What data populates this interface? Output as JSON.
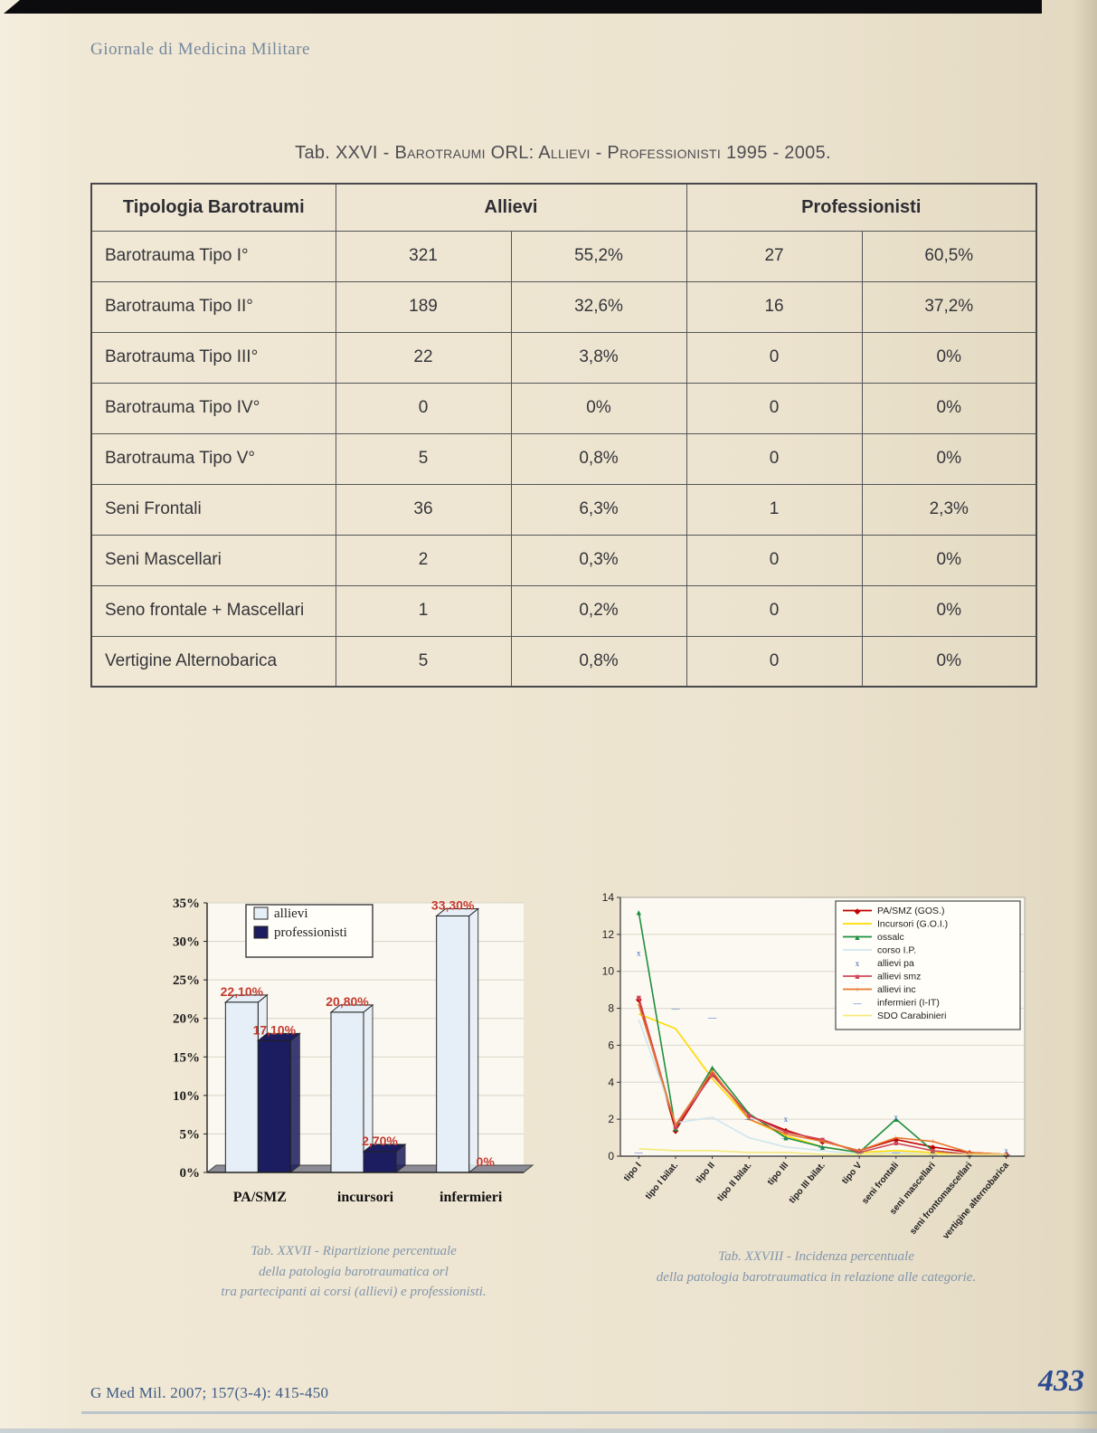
{
  "page": {
    "journal_header": "Giornale di Medicina Militare",
    "footer_citation": "G Med Mil. 2007; 157(3-4): 415-450",
    "page_number": "433"
  },
  "table": {
    "title_prefix": "Tab. XXVI - ",
    "title_smallcaps": "Barotraumi ORL: Allievi - Professionisti 1995 - 2005.",
    "headers": {
      "col1": "Tipologia Barotraumi",
      "group1": "Allievi",
      "group2": "Professionisti"
    },
    "rows": [
      [
        "Barotrauma Tipo I°",
        "321",
        "55,2%",
        "27",
        "60,5%"
      ],
      [
        "Barotrauma Tipo II°",
        "189",
        "32,6%",
        "16",
        "37,2%"
      ],
      [
        "Barotrauma Tipo III°",
        "22",
        "3,8%",
        "0",
        "0%"
      ],
      [
        "Barotrauma Tipo IV°",
        "0",
        "0%",
        "0",
        "0%"
      ],
      [
        "Barotrauma Tipo V°",
        "5",
        "0,8%",
        "0",
        "0%"
      ],
      [
        "Seni Frontali",
        "36",
        "6,3%",
        "1",
        "2,3%"
      ],
      [
        "Seni Mascellari",
        "2",
        "0,3%",
        "0",
        "0%"
      ],
      [
        "Seno frontale + Mascellari",
        "1",
        "0,2%",
        "0",
        "0%"
      ],
      [
        "Vertigine Alternobarica",
        "5",
        "0,8%",
        "0",
        "0%"
      ]
    ]
  },
  "captions": {
    "left": [
      "Tab. XXVII - Ripartizione percentuale",
      "della patologia barotraumatica orl",
      "tra partecipanti ai corsi (allievi) e professionisti."
    ],
    "right": [
      "Tab. XXVIII - Incidenza percentuale",
      "della patologia barotraumatica in relazione alle categorie."
    ]
  },
  "chart_data": [
    {
      "type": "bar",
      "categories": [
        "PA/SMZ",
        "incursori",
        "infermieri"
      ],
      "series": [
        {
          "name": "allievi",
          "color": "#e6eef8",
          "values": [
            22.1,
            20.8,
            33.3
          ],
          "labels": [
            "22,10%",
            "20,80%",
            "33,30%"
          ]
        },
        {
          "name": "professionisti",
          "color": "#1c1c60",
          "values": [
            17.1,
            2.7,
            0
          ],
          "labels": [
            "17,10%",
            "2,70%",
            "0%"
          ]
        }
      ],
      "ylim": [
        0,
        35
      ],
      "ytick_step": 5,
      "yticks": [
        "0%",
        "5%",
        "10%",
        "15%",
        "20%",
        "25%",
        "30%",
        "35%"
      ],
      "label_color": "#c43a2e",
      "legend_position": "top-left",
      "grid": true
    },
    {
      "type": "line",
      "categories": [
        "tipo I",
        "tipo I bilat.",
        "tipo II",
        "tipo II bilat.",
        "tipo III",
        "tipo III bilat.",
        "tipo V",
        "seni frontali",
        "seni mascellari",
        "seni frontomascellari",
        "vertigine alternobarica"
      ],
      "ylim": [
        0,
        14
      ],
      "yticks": [
        0,
        2,
        4,
        6,
        8,
        10,
        12,
        14
      ],
      "legend_position": "top-right",
      "grid": true,
      "series": [
        {
          "name": "PA/SMZ (GOS.)",
          "color": "#c00000",
          "marker": "diamond",
          "line": true,
          "values": [
            8.5,
            1.4,
            4.5,
            2.2,
            1.4,
            0.8,
            0.3,
            0.9,
            0.5,
            0.2,
            0.1
          ]
        },
        {
          "name": "Incursori (G.O.I.)",
          "color": "#ffd900",
          "marker": "none",
          "line": true,
          "values": [
            7.7,
            6.9,
            4.2,
            2.0,
            1.1,
            0.5,
            0.2,
            0.3,
            0.2,
            0.1,
            0.1
          ]
        },
        {
          "name": "ossalc",
          "color": "#1e8f3e",
          "marker": "triangle",
          "line": true,
          "values": [
            13.2,
            1.5,
            4.8,
            2.3,
            1.0,
            0.5,
            0.2,
            2.0,
            0.3,
            0.1,
            0.1
          ]
        },
        {
          "name": "corso I.P.",
          "color": "#cfe6f0",
          "marker": "none",
          "line": true,
          "values": [
            7.4,
            1.8,
            2.1,
            1.0,
            0.5,
            0.3,
            0.1,
            0.2,
            0.1,
            0.1,
            0.1
          ]
        },
        {
          "name": "allievi pa",
          "color": "#3a62b8",
          "marker": "x",
          "line": false,
          "values": [
            11.0,
            1.7,
            4.4,
            2.1,
            2.0,
            0.9,
            0.3,
            2.1,
            0.3,
            0.1,
            0.3
          ]
        },
        {
          "name": "allievi smz",
          "color": "#d0485a",
          "marker": "square",
          "line": true,
          "values": [
            8.6,
            1.6,
            4.4,
            2.2,
            1.3,
            0.9,
            0.2,
            0.7,
            0.3,
            0.1,
            0.1
          ]
        },
        {
          "name": "allievi inc",
          "color": "#e8772e",
          "marker": "plus",
          "line": true,
          "values": [
            8.2,
            1.7,
            4.6,
            2.0,
            1.2,
            0.8,
            0.3,
            1.0,
            0.8,
            0.2,
            0.1
          ]
        },
        {
          "name": "infermieri (I-IT)",
          "color": "#3a5ec0",
          "marker": "dash",
          "line": false,
          "values": [
            0.2,
            8.0,
            7.5,
            2.0,
            1.0,
            0.5,
            0.2,
            0.2,
            0.1,
            0.1,
            0.1
          ]
        },
        {
          "name": "SDO Carabinieri",
          "color": "#f4e97a",
          "marker": "none",
          "line": true,
          "values": [
            0.4,
            0.3,
            0.3,
            0.2,
            0.2,
            0.1,
            0.1,
            0.1,
            0.1,
            0.1,
            0.1
          ]
        }
      ]
    }
  ]
}
